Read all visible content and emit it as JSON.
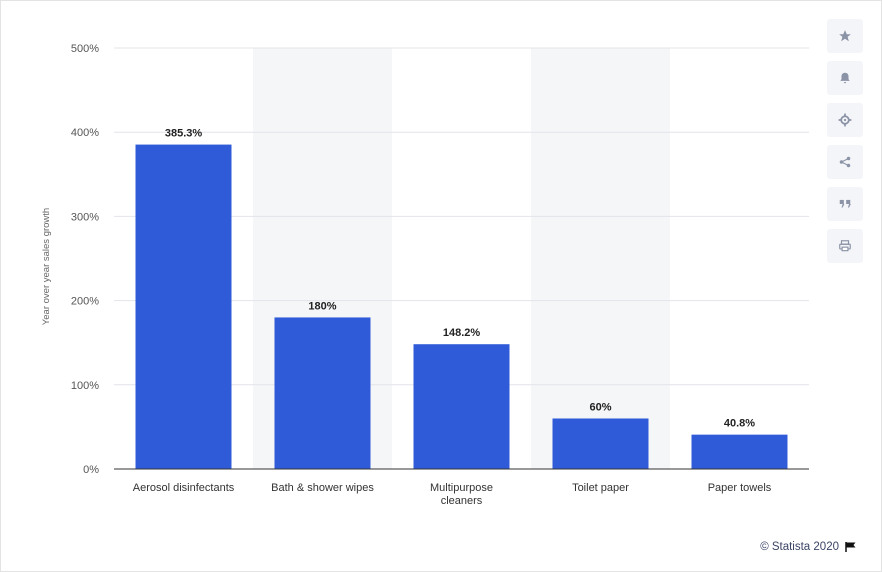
{
  "chart_data": {
    "type": "bar",
    "categories": [
      "Aerosol disinfectants",
      "Bath & shower wipes",
      "Multipurpose cleaners",
      "Toilet paper",
      "Paper towels"
    ],
    "category_lines": [
      [
        "Aerosol disinfectants"
      ],
      [
        "Bath & shower wipes"
      ],
      [
        "Multipurpose",
        "cleaners"
      ],
      [
        "Toilet paper"
      ],
      [
        "Paper towels"
      ]
    ],
    "values": [
      385.3,
      180,
      148.2,
      60,
      40.8
    ],
    "data_labels": [
      "385.3%",
      "180%",
      "148.2%",
      "60%",
      "40.8%"
    ],
    "ylabel": "Year over year sales growth",
    "ylim": [
      0,
      500
    ],
    "yticks": [
      0,
      100,
      200,
      300,
      400,
      500
    ],
    "ytick_labels": [
      "0%",
      "100%",
      "200%",
      "300%",
      "400%",
      "500%"
    ],
    "grid": true,
    "legend": "none",
    "bar_color": "#2f5bd9",
    "alt_band_color": "#f5f6f8"
  },
  "toolbar": {
    "icons": [
      "star-icon",
      "bell-icon",
      "gear-icon",
      "share-icon",
      "quote-icon",
      "print-icon"
    ]
  },
  "footer": {
    "credit": "© Statista 2020"
  }
}
